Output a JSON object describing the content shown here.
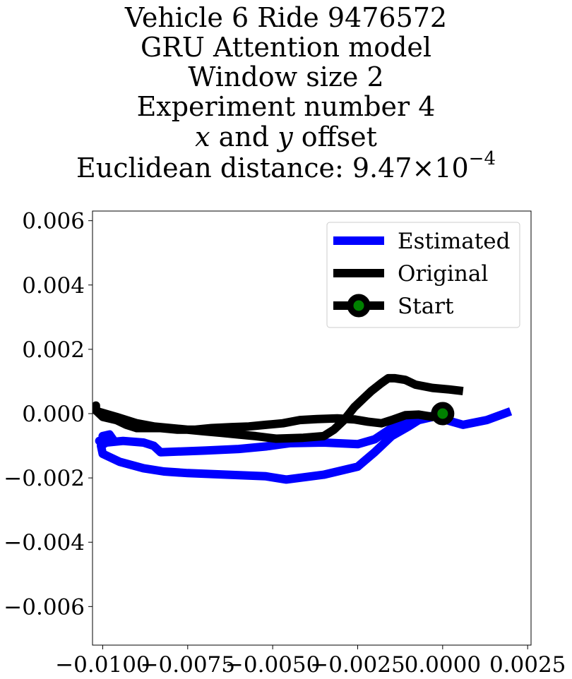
{
  "chart_data": {
    "type": "line",
    "title_lines": [
      "Vehicle 6 Ride 9476572",
      "GRU Attention model",
      "Window size 2",
      "Experiment number 4",
      "x and y offset",
      "Euclidean distance: 9.47×10⁻⁴"
    ],
    "title_parts": {
      "line5_x": "x",
      "line5_and": " and ",
      "line5_y": "y",
      "line5_rest": " offset",
      "line6_prefix": "Euclidean distance: 9.47",
      "line6_times": "×",
      "line6_base": "10",
      "line6_exp": "−4"
    },
    "xlabel": "",
    "ylabel": "",
    "xlim": [
      -0.0103,
      0.0026
    ],
    "ylim": [
      -0.0072,
      0.0063
    ],
    "xticks": [
      -0.01,
      -0.0075,
      -0.005,
      -0.0025,
      0.0,
      0.0025
    ],
    "xtick_labels": [
      "−0.0100",
      "−0.0075",
      "−0.0050",
      "−0.0025",
      "0.0000",
      "0.0025"
    ],
    "yticks": [
      0.006,
      0.004,
      0.002,
      0.0,
      -0.002,
      -0.004,
      -0.006
    ],
    "ytick_labels": [
      "0.006",
      "0.004",
      "0.002",
      "0.000",
      "−0.002",
      "−0.004",
      "−0.006"
    ],
    "grid": false,
    "legend_position": "top-right",
    "series": [
      {
        "name": "Estimated",
        "color": "#0000ff",
        "points": [
          [
            0.002,
            7e-05
          ],
          [
            0.0013,
            -0.0002
          ],
          [
            0.0006,
            -0.00035
          ],
          [
            0.0001,
            -0.0002
          ],
          [
            -0.0002,
            -8e-05
          ],
          [
            -0.0007,
            -0.0002
          ],
          [
            -0.001,
            -0.0004
          ],
          [
            -0.0015,
            -0.0007
          ],
          [
            -0.002,
            -0.0012
          ],
          [
            -0.0025,
            -0.00165
          ],
          [
            -0.0035,
            -0.0019
          ],
          [
            -0.0046,
            -0.00205
          ],
          [
            -0.0052,
            -0.00195
          ],
          [
            -0.0063,
            -0.0019
          ],
          [
            -0.0075,
            -0.00185
          ],
          [
            -0.0082,
            -0.0018
          ],
          [
            -0.0088,
            -0.0017
          ],
          [
            -0.0095,
            -0.0015
          ],
          [
            -0.01,
            -0.00125
          ],
          [
            -0.01005,
            -0.001
          ],
          [
            -0.0099,
            -0.0009
          ],
          [
            -0.0094,
            -0.00085
          ],
          [
            -0.0088,
            -0.0009
          ],
          [
            -0.0085,
            -0.001
          ],
          [
            -0.0083,
            -0.0012
          ],
          [
            -0.007,
            -0.00115
          ],
          [
            -0.006,
            -0.0011
          ],
          [
            -0.0052,
            -0.00102
          ],
          [
            -0.0045,
            -0.00092
          ],
          [
            -0.0035,
            -0.0009
          ],
          [
            -0.0025,
            -0.00095
          ],
          [
            -0.002,
            -0.0008
          ],
          [
            -0.0015,
            -0.00045
          ],
          [
            -0.0011,
            -0.0002
          ],
          [
            -0.0007,
            -0.0001
          ],
          [
            -0.0003,
            -8e-05
          ],
          [
            -0.0001,
            -5e-05
          ]
        ],
        "cluster_points": [
          [
            -0.01,
            -0.0007
          ],
          [
            -0.0098,
            -0.00065
          ],
          [
            -0.0097,
            -0.0008
          ],
          [
            -0.0101,
            -0.00085
          ]
        ]
      },
      {
        "name": "Original",
        "color": "#000000",
        "points": [
          [
            0.0006,
            0.0007
          ],
          [
            0.0002,
            0.00075
          ],
          [
            -0.0003,
            0.0008
          ],
          [
            -0.0008,
            0.0009
          ],
          [
            -0.0011,
            0.00105
          ],
          [
            -0.0014,
            0.0011
          ],
          [
            -0.0016,
            0.0011
          ],
          [
            -0.0018,
            0.00095
          ],
          [
            -0.0021,
            0.0007
          ],
          [
            -0.0023,
            0.0005
          ],
          [
            -0.0026,
            0.0002
          ],
          [
            -0.0029,
            -0.0002
          ],
          [
            -0.0032,
            -0.0005
          ],
          [
            -0.0035,
            -0.0007
          ],
          [
            -0.0041,
            -0.00075
          ],
          [
            -0.0049,
            -0.00078
          ],
          [
            -0.0055,
            -0.0007
          ],
          [
            -0.006,
            -0.00065
          ],
          [
            -0.0065,
            -0.0006
          ],
          [
            -0.007,
            -0.00055
          ],
          [
            -0.0077,
            -0.00048
          ],
          [
            -0.0085,
            -0.0004
          ],
          [
            -0.009,
            -0.0003
          ],
          [
            -0.0096,
            -0.0001
          ],
          [
            -0.0101,
            5e-05
          ],
          [
            -0.0103,
            0.00015
          ],
          [
            -0.0102,
            0.00025
          ],
          [
            -0.0102,
            0.0001
          ],
          [
            -0.01,
            -0.0001
          ],
          [
            -0.0096,
            -0.0002
          ],
          [
            -0.0093,
            -0.00035
          ],
          [
            -0.009,
            -0.00045
          ],
          [
            -0.0083,
            -0.00045
          ],
          [
            -0.0078,
            -0.0005
          ],
          [
            -0.0073,
            -0.0005
          ],
          [
            -0.0068,
            -0.00045
          ],
          [
            -0.0062,
            -0.00042
          ],
          [
            -0.0057,
            -0.0004
          ],
          [
            -0.0052,
            -0.00035
          ],
          [
            -0.0047,
            -0.0003
          ],
          [
            -0.0042,
            -0.0002
          ],
          [
            -0.0037,
            -0.00017
          ],
          [
            -0.0031,
            -0.00015
          ],
          [
            -0.0026,
            -0.00018
          ],
          [
            -0.0022,
            -0.00025
          ],
          [
            -0.0018,
            -0.0003
          ],
          [
            -0.0015,
            -0.0002
          ],
          [
            -0.0011,
            -5e-05
          ],
          [
            -0.0007,
            -3e-05
          ],
          [
            -0.0003,
            -0.0001
          ],
          [
            0.0,
            0.0
          ]
        ]
      }
    ],
    "start_marker": {
      "name": "Start",
      "x": 0.0,
      "y": 0.0,
      "face_color": "#008000",
      "edge_color": "#000000"
    },
    "legend": {
      "estimated": "Estimated",
      "original": "Original",
      "start": "Start"
    }
  }
}
